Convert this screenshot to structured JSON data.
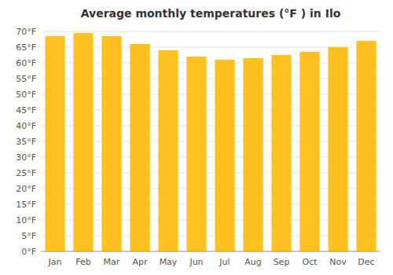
{
  "chart_data": {
    "type": "bar",
    "title": "Average monthly temperatures (°F ) in Ilo",
    "categories": [
      "Jan",
      "Feb",
      "Mar",
      "Apr",
      "May",
      "Jun",
      "Jul",
      "Aug",
      "Sep",
      "Oct",
      "Nov",
      "Dec"
    ],
    "values": [
      68.5,
      69.5,
      68.5,
      66.0,
      64.0,
      62.0,
      61.0,
      61.5,
      62.5,
      63.5,
      65.0,
      67.0
    ],
    "color": "#FFC020",
    "ylim": [
      0,
      70
    ],
    "yticks": [
      {
        "value": 0,
        "label": "0°F"
      },
      {
        "value": 5,
        "label": "5°F"
      },
      {
        "value": 10,
        "label": "10°F"
      },
      {
        "value": 15,
        "label": "15°F"
      },
      {
        "value": 20,
        "label": "20°F"
      },
      {
        "value": 25,
        "label": "25°F"
      },
      {
        "value": 30,
        "label": "30°F"
      },
      {
        "value": 35,
        "label": "35°F"
      },
      {
        "value": 40,
        "label": "40°F"
      },
      {
        "value": 45,
        "label": "45°F"
      },
      {
        "value": 50,
        "label": "50°F"
      },
      {
        "value": 55,
        "label": "55°F"
      },
      {
        "value": 60,
        "label": "60°F"
      },
      {
        "value": 65,
        "label": "65°F"
      },
      {
        "value": 70,
        "label": "70°F"
      }
    ],
    "grid": true
  }
}
